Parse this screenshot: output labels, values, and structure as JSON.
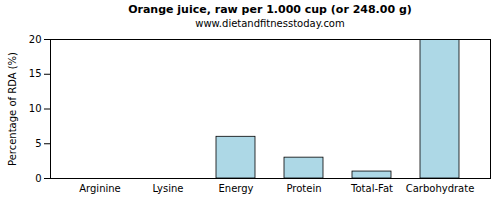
{
  "chart_data": {
    "type": "bar",
    "title": "Orange juice, raw per 1.000 cup (or 248.00 g)",
    "subtitle": "www.dietandfitnesstoday.com",
    "y_label": "Percentage of RDA (%)",
    "categories": [
      "Arginine",
      "Lysine",
      "Energy",
      "Protein",
      "Total-Fat",
      "Carbohydrate"
    ],
    "values": [
      0,
      0,
      6,
      3,
      1,
      20
    ],
    "color": "#add8e6",
    "ylim": [
      0,
      20
    ],
    "yticks": [
      0,
      5,
      10,
      15,
      20
    ],
    "grid": false
  }
}
